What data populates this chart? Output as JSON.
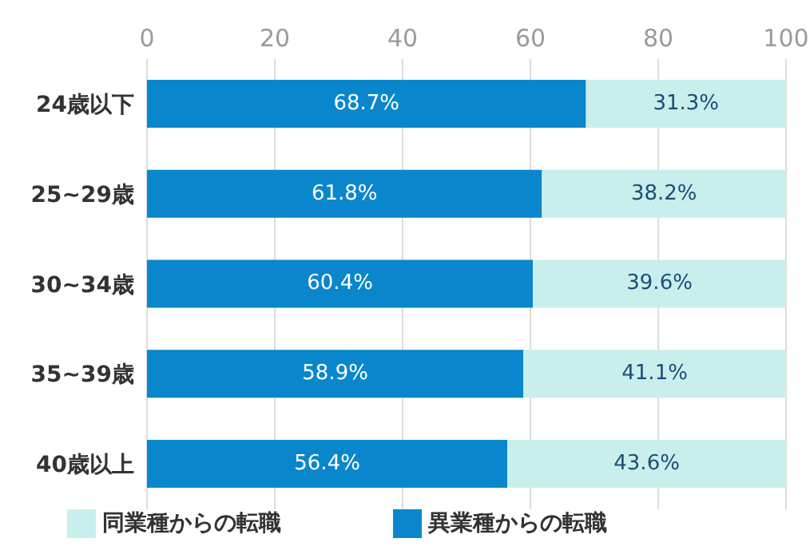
{
  "chart_data": {
    "type": "bar",
    "orientation": "horizontal",
    "stacked": true,
    "categories": [
      "24歳以下",
      "25~29歳",
      "30~34歳",
      "35~39歳",
      "40歳以上"
    ],
    "series": [
      {
        "name": "異業種からの転職",
        "color": "#0a87cc",
        "values": [
          68.7,
          61.8,
          60.4,
          58.9,
          56.4
        ],
        "value_labels": [
          "68.7%",
          "61.8%",
          "60.4%",
          "58.9%",
          "56.4%"
        ]
      },
      {
        "name": "同業種からの転職",
        "color": "#c9efec",
        "values": [
          31.3,
          38.2,
          39.6,
          41.1,
          43.6
        ],
        "value_labels": [
          "31.3%",
          "38.2%",
          "39.6%",
          "41.1%",
          "43.6%"
        ]
      }
    ],
    "xlim": [
      0,
      100
    ],
    "xticks": [
      0,
      20,
      40,
      60,
      80,
      100
    ],
    "grid": "x",
    "legend": "bottom"
  }
}
